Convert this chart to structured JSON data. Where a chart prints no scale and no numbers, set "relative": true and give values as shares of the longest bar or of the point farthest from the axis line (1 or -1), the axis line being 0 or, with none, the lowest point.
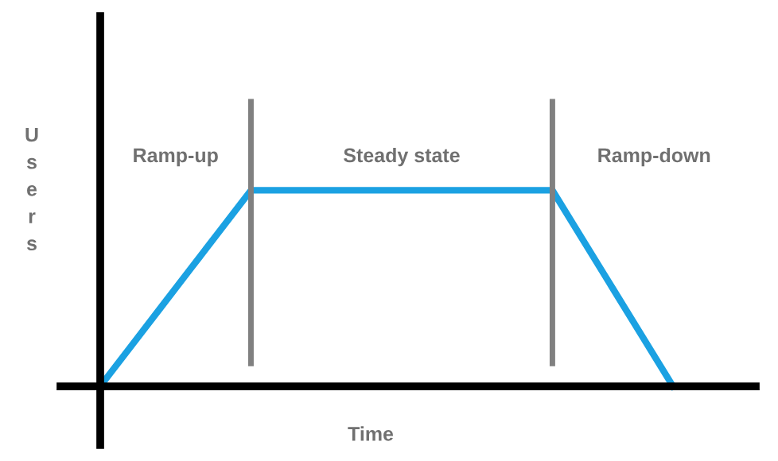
{
  "chart_data": {
    "type": "line",
    "relative": true,
    "xlabel": "Time",
    "ylabel": "Users",
    "categories": [
      null,
      null,
      null,
      null,
      null,
      null,
      null,
      null,
      null,
      null,
      null,
      null,
      null,
      null,
      null,
      null,
      null,
      null,
      null,
      null
    ],
    "legend": false,
    "marker": "none",
    "line_style": "solid",
    "series": [
      {
        "color": "#1ba1e2",
        "values": [
          0,
          0.2,
          0.4,
          0.6,
          0.8,
          1,
          1,
          1,
          1,
          1,
          1,
          1,
          1,
          1,
          1,
          1,
          0.75,
          0.5,
          0.25,
          0
        ]
      }
    ],
    "annotations": [
      "Ramp-up",
      "Steady state",
      "Ramp-down"
    ]
  }
}
